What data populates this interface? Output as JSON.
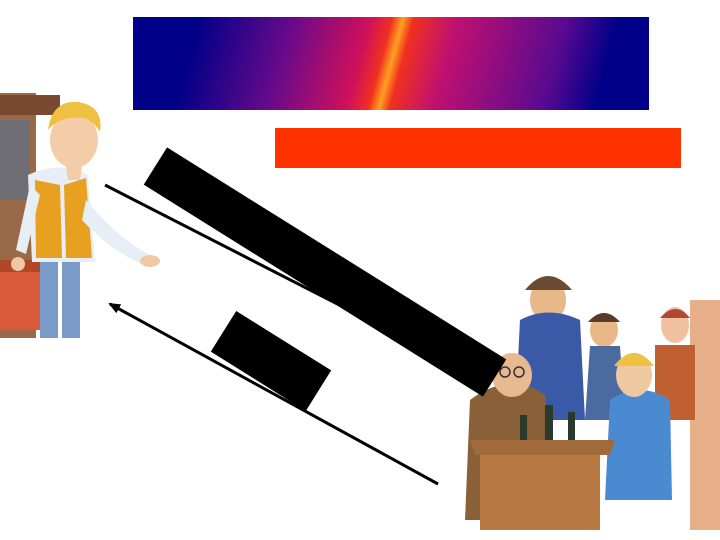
{
  "slide": {
    "title_banner": "",
    "subtitle_bar": "",
    "label_long": "",
    "label_short": ""
  },
  "colors": {
    "banner_dark": "#000088",
    "banner_hot": "#ff3300",
    "subtitle": "#ff3300",
    "labels": "#000000",
    "arrows": "#000000"
  },
  "icons": {
    "boy": "boy-illustration",
    "crowd": "gentlemen-group-illustration",
    "arrow_right": "arrow-right-icon",
    "arrow_left": "arrow-left-icon"
  }
}
